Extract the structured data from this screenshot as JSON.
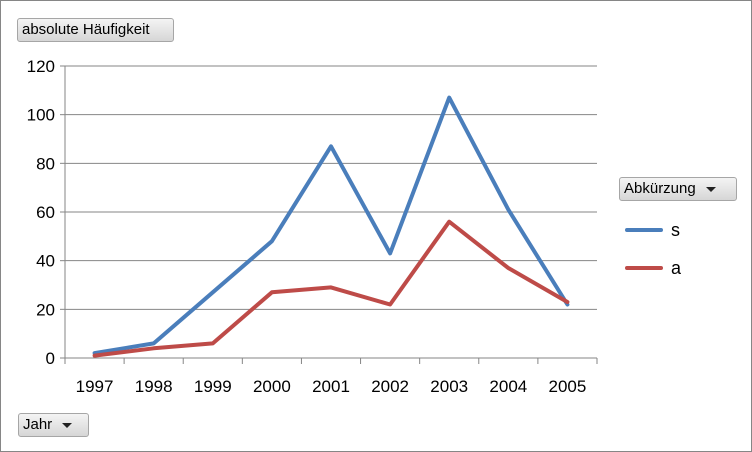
{
  "pivot": {
    "value_field": "absolute Häufigkeit",
    "legend_field": "Abkürzung",
    "axis_field": "Jahr"
  },
  "colors": {
    "s": "#4a7ebb",
    "a": "#be4b48",
    "grid": "#868686",
    "axis": "#868686"
  },
  "chart_data": {
    "type": "line",
    "title": "",
    "xlabel": "",
    "ylabel": "",
    "categories": [
      "1997",
      "1998",
      "1999",
      "2000",
      "2001",
      "2002",
      "2003",
      "2004",
      "2005"
    ],
    "ylim": [
      0,
      120
    ],
    "yticks": [
      0,
      20,
      40,
      60,
      80,
      100,
      120
    ],
    "grid": true,
    "legend": "right",
    "series": [
      {
        "name": "s",
        "color": "#4a7ebb",
        "values": [
          2,
          6,
          27,
          48,
          87,
          43,
          107,
          61,
          22
        ]
      },
      {
        "name": "a",
        "color": "#be4b48",
        "values": [
          1,
          4,
          6,
          27,
          29,
          22,
          56,
          37,
          23
        ]
      }
    ]
  }
}
